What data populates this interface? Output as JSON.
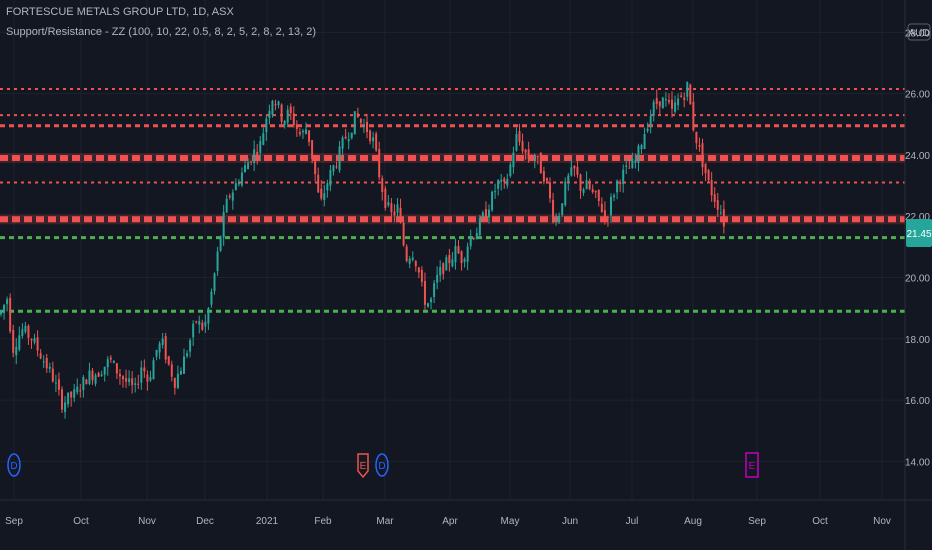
{
  "header": {
    "symbol": "FORTESCUE METALS GROUP LTD, 1D, ASX",
    "indicator": "Support/Resistance - ZZ (100, 10, 22, 0.5, 8, 2, 5, 2, 8, 2, 13, 2)"
  },
  "currency": "AUD",
  "current_price": "21.45",
  "colors": {
    "background": "#131722",
    "grid": "#1e222d",
    "up": "#26a69a",
    "down": "#ef5350",
    "resistance": "#f05050",
    "support": "#4caf50",
    "price_label": "#26a69a",
    "dividend": "#2962ff",
    "earnings_past": "#ef5350",
    "earnings_future": "#c000c0"
  },
  "chart_data": {
    "type": "candlestick",
    "y_ticks": [
      "14.00",
      "16.00",
      "18.00",
      "20.00",
      "22.00",
      "24.00",
      "26.00",
      "28.00"
    ],
    "ylim": [
      13.0,
      28.5
    ],
    "x_labels": [
      "Sep",
      "Oct",
      "Nov",
      "Dec",
      "2021",
      "Feb",
      "Mar",
      "Apr",
      "May",
      "Jun",
      "Jul",
      "Aug",
      "Sep",
      "Oct",
      "Nov"
    ],
    "resistance_levels": [
      {
        "value": 26.15,
        "style": "dotted"
      },
      {
        "value": 25.3,
        "style": "dotted"
      },
      {
        "value": 24.95,
        "style": "dashed"
      },
      {
        "value": 23.9,
        "style": "dashed-thick"
      },
      {
        "value": 23.1,
        "style": "dotted"
      },
      {
        "value": 21.9,
        "style": "dashed-thick"
      }
    ],
    "support_levels": [
      {
        "value": 21.3,
        "style": "dashed"
      },
      {
        "value": 18.9,
        "style": "dashed"
      }
    ],
    "price_path": [
      [
        0,
        18.8
      ],
      [
        8,
        19.4
      ],
      [
        12,
        17.6
      ],
      [
        17,
        18.0
      ],
      [
        22,
        18.3
      ],
      [
        32,
        18.0
      ],
      [
        42,
        17.4
      ],
      [
        52,
        16.8
      ],
      [
        62,
        15.9
      ],
      [
        75,
        16.2
      ],
      [
        88,
        16.8
      ],
      [
        98,
        16.9
      ],
      [
        110,
        17.3
      ],
      [
        118,
        16.9
      ],
      [
        126,
        16.6
      ],
      [
        135,
        16.3
      ],
      [
        142,
        17.2
      ],
      [
        148,
        16.6
      ],
      [
        156,
        17.6
      ],
      [
        162,
        17.9
      ],
      [
        168,
        17.2
      ],
      [
        175,
        16.6
      ],
      [
        185,
        17.4
      ],
      [
        196,
        18.6
      ],
      [
        204,
        18.3
      ],
      [
        210,
        19.2
      ],
      [
        216,
        20.4
      ],
      [
        222,
        21.7
      ],
      [
        228,
        22.6
      ],
      [
        234,
        22.9
      ],
      [
        240,
        23.3
      ],
      [
        247,
        23.7
      ],
      [
        254,
        24.1
      ],
      [
        260,
        24.3
      ],
      [
        266,
        25.2
      ],
      [
        272,
        25.9
      ],
      [
        278,
        25.6
      ],
      [
        283,
        25.1
      ],
      [
        289,
        25.4
      ],
      [
        295,
        25.0
      ],
      [
        301,
        24.6
      ],
      [
        307,
        24.9
      ],
      [
        314,
        23.6
      ],
      [
        320,
        22.3
      ],
      [
        326,
        23.0
      ],
      [
        332,
        23.5
      ],
      [
        338,
        23.9
      ],
      [
        344,
        24.5
      ],
      [
        350,
        24.8
      ],
      [
        356,
        25.3
      ],
      [
        362,
        25.0
      ],
      [
        368,
        24.8
      ],
      [
        374,
        24.4
      ],
      [
        380,
        23.2
      ],
      [
        386,
        22.4
      ],
      [
        392,
        22.0
      ],
      [
        398,
        22.3
      ],
      [
        402,
        21.3
      ],
      [
        407,
        20.6
      ],
      [
        412,
        20.9
      ],
      [
        418,
        20.3
      ],
      [
        424,
        19.3
      ],
      [
        430,
        19.1
      ],
      [
        436,
        19.9
      ],
      [
        442,
        20.3
      ],
      [
        448,
        20.5
      ],
      [
        456,
        20.9
      ],
      [
        462,
        20.6
      ],
      [
        470,
        21.3
      ],
      [
        478,
        21.6
      ],
      [
        485,
        22.1
      ],
      [
        492,
        22.6
      ],
      [
        498,
        23.1
      ],
      [
        504,
        22.9
      ],
      [
        510,
        23.6
      ],
      [
        516,
        24.6
      ],
      [
        522,
        24.3
      ],
      [
        528,
        23.9
      ],
      [
        534,
        24.0
      ],
      [
        540,
        23.6
      ],
      [
        546,
        23.2
      ],
      [
        552,
        22.2
      ],
      [
        557,
        21.8
      ],
      [
        563,
        22.7
      ],
      [
        569,
        23.3
      ],
      [
        575,
        23.5
      ],
      [
        581,
        22.9
      ],
      [
        587,
        23.0
      ],
      [
        593,
        22.7
      ],
      [
        600,
        22.4
      ],
      [
        606,
        21.9
      ],
      [
        612,
        22.6
      ],
      [
        618,
        23.2
      ],
      [
        624,
        23.4
      ],
      [
        630,
        23.6
      ],
      [
        636,
        23.8
      ],
      [
        642,
        24.5
      ],
      [
        648,
        25.1
      ],
      [
        654,
        25.6
      ],
      [
        660,
        25.8
      ],
      [
        666,
        25.7
      ],
      [
        672,
        25.4
      ],
      [
        678,
        25.8
      ],
      [
        684,
        26.0
      ],
      [
        688,
        26.3
      ],
      [
        692,
        25.1
      ],
      [
        698,
        24.3
      ],
      [
        704,
        23.6
      ],
      [
        710,
        22.9
      ],
      [
        716,
        22.5
      ],
      [
        722,
        22.1
      ],
      [
        726,
        21.45
      ]
    ],
    "events": [
      {
        "type": "dividend",
        "label": "D",
        "x": 14
      },
      {
        "type": "earnings",
        "label": "E",
        "x": 363
      },
      {
        "type": "dividend",
        "label": "D",
        "x": 382
      },
      {
        "type": "earnings-future",
        "label": "E",
        "x": 752
      }
    ]
  }
}
